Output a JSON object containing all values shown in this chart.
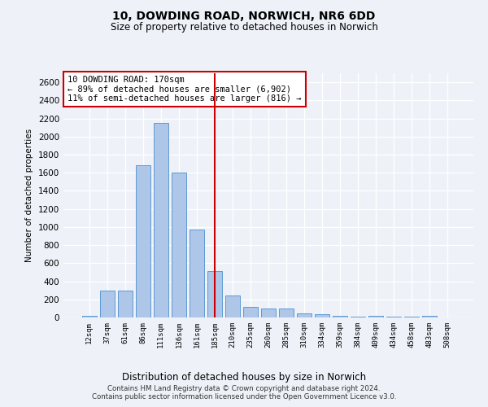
{
  "title1": "10, DOWDING ROAD, NORWICH, NR6 6DD",
  "title2": "Size of property relative to detached houses in Norwich",
  "xlabel": "Distribution of detached houses by size in Norwich",
  "ylabel": "Number of detached properties",
  "annotation_line1": "10 DOWDING ROAD: 170sqm",
  "annotation_line2": "← 89% of detached houses are smaller (6,902)",
  "annotation_line3": "11% of semi-detached houses are larger (816) →",
  "bar_color": "#aec6e8",
  "bar_edge_color": "#5b9bd5",
  "vline_color": "#cc0000",
  "background_color": "#eef2f8",
  "categories": [
    "12sqm",
    "37sqm",
    "61sqm",
    "86sqm",
    "111sqm",
    "136sqm",
    "161sqm",
    "185sqm",
    "210sqm",
    "235sqm",
    "260sqm",
    "285sqm",
    "310sqm",
    "334sqm",
    "359sqm",
    "384sqm",
    "409sqm",
    "434sqm",
    "458sqm",
    "483sqm",
    "508sqm"
  ],
  "values": [
    20,
    300,
    300,
    1680,
    2150,
    1600,
    970,
    510,
    245,
    120,
    100,
    100,
    45,
    35,
    15,
    5,
    20,
    5,
    5,
    20,
    0
  ],
  "ylim": [
    0,
    2700
  ],
  "yticks": [
    0,
    200,
    400,
    600,
    800,
    1000,
    1200,
    1400,
    1600,
    1800,
    2000,
    2200,
    2400,
    2600
  ],
  "vline_index": 7,
  "footer1": "Contains HM Land Registry data © Crown copyright and database right 2024.",
  "footer2": "Contains public sector information licensed under the Open Government Licence v3.0."
}
